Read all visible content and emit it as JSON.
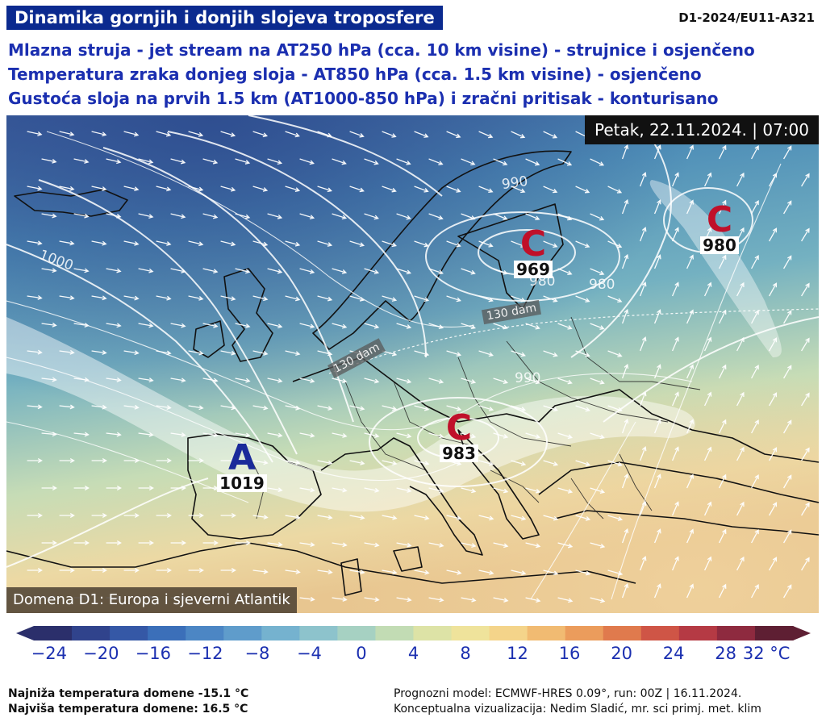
{
  "header": {
    "title": "Dinamika gornjih i donjih slojeva troposfere",
    "code": "D1-2024/EU11-A321",
    "lines": [
      "Mlazna struja - jet stream na AT250 hPa (cca. 10 km visine) - strujnice i osjenčeno",
      "Temperatura zraka donjeg sloja - AT850 hPa (cca. 1.5 km visine) - osjenčeno",
      "Gustoća sloja na prvih 1.5 km (AT1000-850 hPa) i zračni pritisak - konturisano"
    ]
  },
  "map": {
    "date_label": "Petak, 22.11.2024. | 07:00",
    "domain_label": "Domena D1: Europa i sjeverni Atlantik",
    "pressure_systems": [
      {
        "letter": "A",
        "value": "1019",
        "color": "#1a2a9a"
      },
      {
        "letter": "C",
        "value": "969",
        "color": "#c0102a"
      },
      {
        "letter": "C",
        "value": "980",
        "color": "#c0102a"
      },
      {
        "letter": "C",
        "value": "983",
        "color": "#c0102a"
      }
    ],
    "thickness_labels": [
      "130 dam",
      "130 dam"
    ],
    "isobar_labels": [
      "1000",
      "990",
      "980",
      "980",
      "990"
    ]
  },
  "legend": {
    "ticks": [
      "−24",
      "−20",
      "−16",
      "−12",
      "−8",
      "−4",
      "0",
      "4",
      "8",
      "12",
      "16",
      "20",
      "24",
      "28",
      "32 °C"
    ],
    "colors": [
      "#2b2f6b",
      "#30438c",
      "#3558a6",
      "#3b6fb9",
      "#4c86c4",
      "#5f9ccb",
      "#75b2cf",
      "#8dc3cc",
      "#a6d1c2",
      "#c2dcb4",
      "#dde3a6",
      "#efe39b",
      "#f4d48a",
      "#f1bb72",
      "#eb9c5c",
      "#e07a4d",
      "#cf5546",
      "#b53a44",
      "#8e2a3f",
      "#5e1f33"
    ]
  },
  "footer": {
    "min_temp": "Najniža temperatura domene -15.1 °C",
    "max_temp": "Najviša temperatura domene: 16.5 °C",
    "model": "Prognozni model: ECMWF-HRES 0.09°, run: 00Z | 16.11.2024.",
    "credit": "Konceptualna vizualizacija: Nedim Sladić, mr. sci primj. met. klim"
  }
}
